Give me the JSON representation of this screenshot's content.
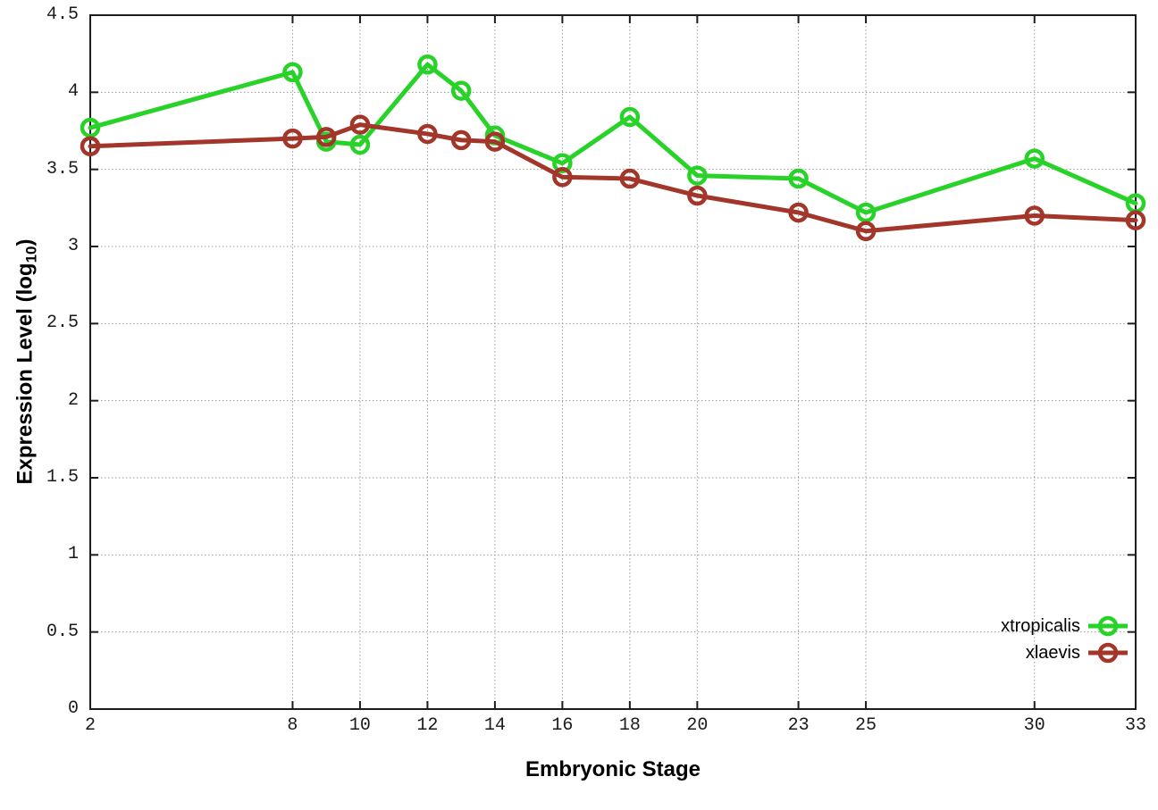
{
  "chart_data": {
    "type": "line",
    "title": "",
    "xlabel": "Embryonic Stage",
    "ylabel": "Expression Level (log10)",
    "ylabel_rich": {
      "pre": "Expression Level (log",
      "sub": "10",
      "post": ")"
    },
    "x": [
      2,
      8,
      9,
      10,
      12,
      13,
      14,
      16,
      18,
      20,
      23,
      25,
      30,
      33
    ],
    "series": [
      {
        "name": "xtropicalis",
        "color": "#28d228",
        "values": [
          3.77,
          4.13,
          3.68,
          3.66,
          4.18,
          4.01,
          3.72,
          3.54,
          3.84,
          3.46,
          3.44,
          3.22,
          3.57,
          3.28
        ]
      },
      {
        "name": "xlaevis",
        "color": "#a2362a",
        "values": [
          3.65,
          3.7,
          3.71,
          3.79,
          3.73,
          3.69,
          3.68,
          3.45,
          3.44,
          3.33,
          3.22,
          3.1,
          3.2,
          3.17
        ]
      }
    ],
    "xlim": [
      2,
      33
    ],
    "ylim": [
      0,
      4.5
    ],
    "xticks": [
      2,
      8,
      10,
      12,
      14,
      16,
      18,
      20,
      23,
      25,
      30,
      33
    ],
    "xtick_labels": [
      "2",
      "8",
      "10",
      "12",
      "14",
      "16",
      "18",
      "20",
      "23",
      "25",
      "30",
      "33"
    ],
    "yticks": [
      0,
      0.5,
      1,
      1.5,
      2,
      2.5,
      3,
      3.5,
      4,
      4.5
    ],
    "ytick_labels": [
      "0",
      "0.5",
      "1",
      "1.5",
      "2",
      "2.5",
      "3",
      "3.5",
      "4",
      "4.5"
    ],
    "grid": "dotted",
    "legend_position": "bottom-right",
    "marker": "open-circle",
    "colors": {
      "background": "#ffffff",
      "border": "#1c1c1c",
      "grid": "#9a9a9a",
      "text": "#000000"
    }
  }
}
